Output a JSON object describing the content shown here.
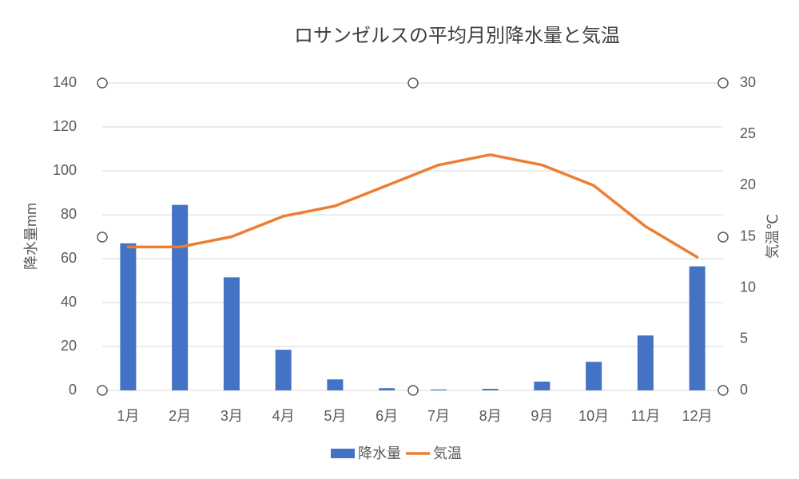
{
  "chart_data": {
    "type": "combo",
    "title": "ロサンゼルスの平均月別降水量と気温",
    "categories": [
      "1月",
      "2月",
      "3月",
      "4月",
      "5月",
      "6月",
      "7月",
      "8月",
      "9月",
      "10月",
      "11月",
      "12月"
    ],
    "series": [
      {
        "name": "降水量",
        "type": "bar",
        "color": "#4472c4",
        "values": [
          67,
          84.5,
          51.5,
          18.5,
          5,
          1,
          0.4,
          0.7,
          4,
          13,
          25,
          56.5
        ]
      },
      {
        "name": "気温",
        "type": "line",
        "axis": "y2",
        "color": "#ed7d31",
        "values": [
          14,
          14,
          15,
          17,
          18,
          20,
          22,
          23,
          22,
          20,
          16,
          13
        ]
      }
    ],
    "ylabel": "降水量mm",
    "y2label": "気温℃",
    "ylim": [
      0,
      140
    ],
    "yticks": [
      0,
      20,
      40,
      60,
      80,
      100,
      120,
      140
    ],
    "y2lim": [
      0,
      30
    ],
    "y2ticks": [
      0,
      5,
      10,
      15,
      20,
      25,
      30
    ],
    "grid": true,
    "legend": "bottom"
  }
}
